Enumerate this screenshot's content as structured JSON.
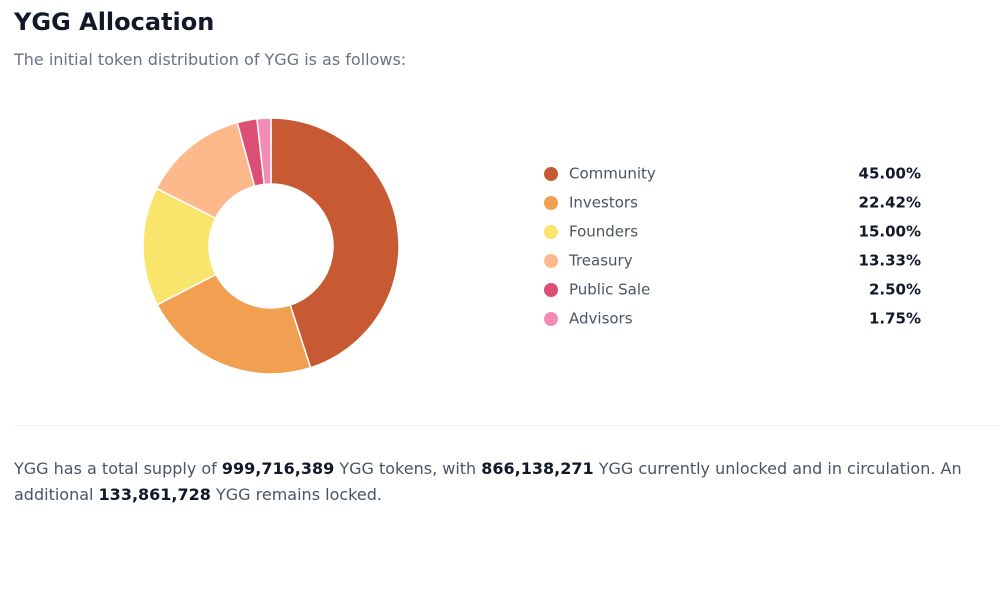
{
  "header": {
    "title": "YGG Allocation",
    "subtitle": "The initial token distribution of YGG is as follows:"
  },
  "chart_data": {
    "type": "pie",
    "donut": true,
    "categories": [
      "Community",
      "Investors",
      "Founders",
      "Treasury",
      "Public Sale",
      "Advisors"
    ],
    "values": [
      45,
      22.42,
      15,
      13.33,
      2.5,
      1.75
    ],
    "value_labels": [
      "45.00%",
      "22.42%",
      "15.00%",
      "13.33%",
      "2.50%",
      "1.75%"
    ],
    "colors": [
      "#c75a32",
      "#f0a050",
      "#f9e46c",
      "#fdb98c",
      "#dc4f75",
      "#f28cb5"
    ]
  },
  "summary": [
    "YGG has a total supply of ",
    "999,716,389",
    " YGG tokens, with ",
    "866,138,271",
    " YGG currently unlocked and in circulation. An additional ",
    "133,861,728",
    " YGG remains locked."
  ]
}
